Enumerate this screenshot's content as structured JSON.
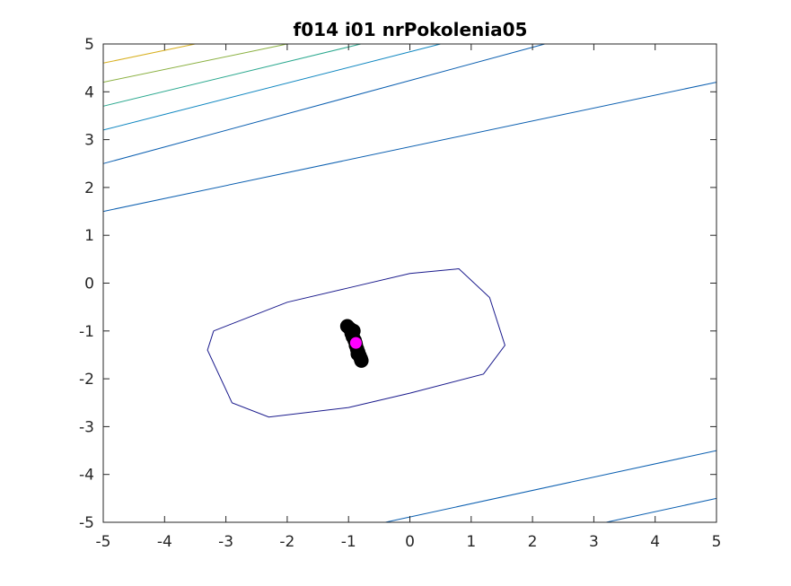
{
  "chart_data": {
    "type": "contour",
    "title": "f014 i01 nrPokolenia05",
    "xlabel": "",
    "ylabel": "",
    "xlim": [
      -5,
      5
    ],
    "ylim": [
      -5,
      5
    ],
    "xticks": [
      -5,
      -4,
      -3,
      -2,
      -1,
      0,
      1,
      2,
      3,
      4,
      5
    ],
    "yticks": [
      -5,
      -4,
      -3,
      -2,
      -1,
      0,
      1,
      2,
      3,
      4,
      5
    ],
    "grid": false,
    "contour_lines": [
      {
        "color": "#1a1a8c",
        "points": [
          [
            -3.2,
            -1.0
          ],
          [
            -2.0,
            -0.4
          ],
          [
            -1.0,
            -0.1
          ],
          [
            0.0,
            0.2
          ],
          [
            0.8,
            0.3
          ],
          [
            1.3,
            -0.3
          ],
          [
            1.55,
            -1.3
          ],
          [
            1.2,
            -1.9
          ],
          [
            0.0,
            -2.3
          ],
          [
            -1.0,
            -2.6
          ],
          [
            -2.3,
            -2.8
          ],
          [
            -2.9,
            -2.5
          ],
          [
            -3.3,
            -1.4
          ],
          [
            -3.2,
            -1.0
          ]
        ]
      },
      {
        "color": "#0b5fb0",
        "points": [
          [
            -5,
            1.5
          ],
          [
            5,
            4.2
          ]
        ]
      },
      {
        "color": "#0b5fb0",
        "points": [
          [
            -5,
            2.5
          ],
          [
            2.2,
            5.0
          ]
        ]
      },
      {
        "color": "#0e86c0",
        "points": [
          [
            -5,
            3.2
          ],
          [
            0.5,
            5.0
          ]
        ]
      },
      {
        "color": "#2aa88e",
        "points": [
          [
            -5,
            3.7
          ],
          [
            -0.8,
            5.0
          ]
        ]
      },
      {
        "color": "#8ab040",
        "points": [
          [
            -5,
            4.2
          ],
          [
            -2.0,
            5.0
          ]
        ]
      },
      {
        "color": "#d8b020",
        "points": [
          [
            -5,
            4.6
          ],
          [
            -3.5,
            5.0
          ]
        ]
      },
      {
        "color": "#0b5fb0",
        "points": [
          [
            -0.4,
            -5.0
          ],
          [
            5,
            -3.5
          ]
        ]
      },
      {
        "color": "#0b5fb0",
        "points": [
          [
            3.2,
            -5.0
          ],
          [
            5,
            -4.5
          ]
        ]
      },
      {
        "color": "#0b5fb0",
        "points": [
          [
            4.2,
            5.0
          ],
          [
            4.4,
            5.0
          ]
        ]
      }
    ],
    "population_points": {
      "color": "#000000",
      "x": [
        -1.02,
        -0.98,
        -0.95,
        -0.93,
        -0.9,
        -0.88,
        -0.86,
        -0.84,
        -0.82,
        -0.8,
        -0.79,
        -0.92,
        -0.85
      ],
      "y": [
        -0.9,
        -0.95,
        -1.05,
        -1.12,
        -1.2,
        -1.3,
        -1.38,
        -1.45,
        -1.52,
        -1.58,
        -1.62,
        -1.0,
        -1.48
      ]
    },
    "best_point": {
      "color": "#ff00ff",
      "x": -0.88,
      "y": -1.25
    }
  }
}
